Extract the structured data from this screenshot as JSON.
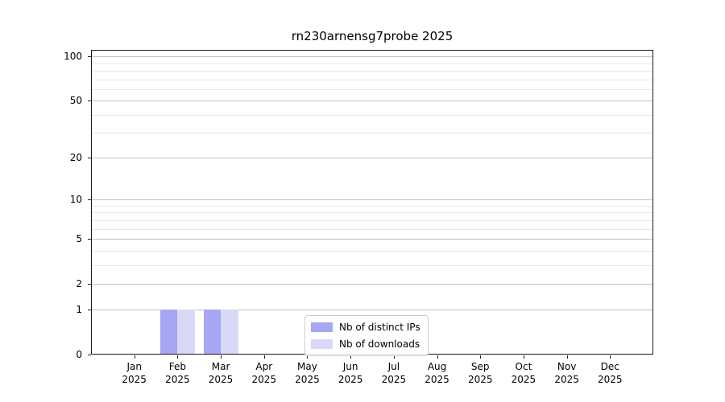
{
  "chart_data": {
    "type": "bar",
    "title": "rn230arnensg7probe 2025",
    "categories": [
      "Jan",
      "Feb",
      "Mar",
      "Apr",
      "May",
      "Jun",
      "Jul",
      "Aug",
      "Sep",
      "Oct",
      "Nov",
      "Dec"
    ],
    "x_year_label": "2025",
    "series": [
      {
        "name": "Nb of distinct IPs",
        "color": "#a6a6f5",
        "values": [
          0,
          1,
          1,
          0,
          0,
          0,
          0,
          0,
          0,
          0,
          0,
          0
        ]
      },
      {
        "name": "Nb of downloads",
        "color": "#d9d9f7",
        "values": [
          0,
          1,
          1,
          0,
          0,
          0,
          0,
          0,
          0,
          0,
          0,
          0
        ]
      }
    ],
    "y_axis": {
      "scale": "log1p",
      "major_ticks": [
        0,
        1,
        2,
        5,
        10,
        20,
        50,
        100
      ],
      "minor_ticks": [
        3,
        4,
        6,
        7,
        8,
        9,
        30,
        40,
        60,
        70,
        80,
        90
      ],
      "range": [
        0,
        110
      ]
    },
    "grid": true,
    "legend_position": "lower center",
    "colors": {
      "axis": "#1a1a1a",
      "major_grid": "#c3c3c3",
      "minor_grid": "#e7e7e7",
      "legend_border": "#cccccc"
    }
  }
}
